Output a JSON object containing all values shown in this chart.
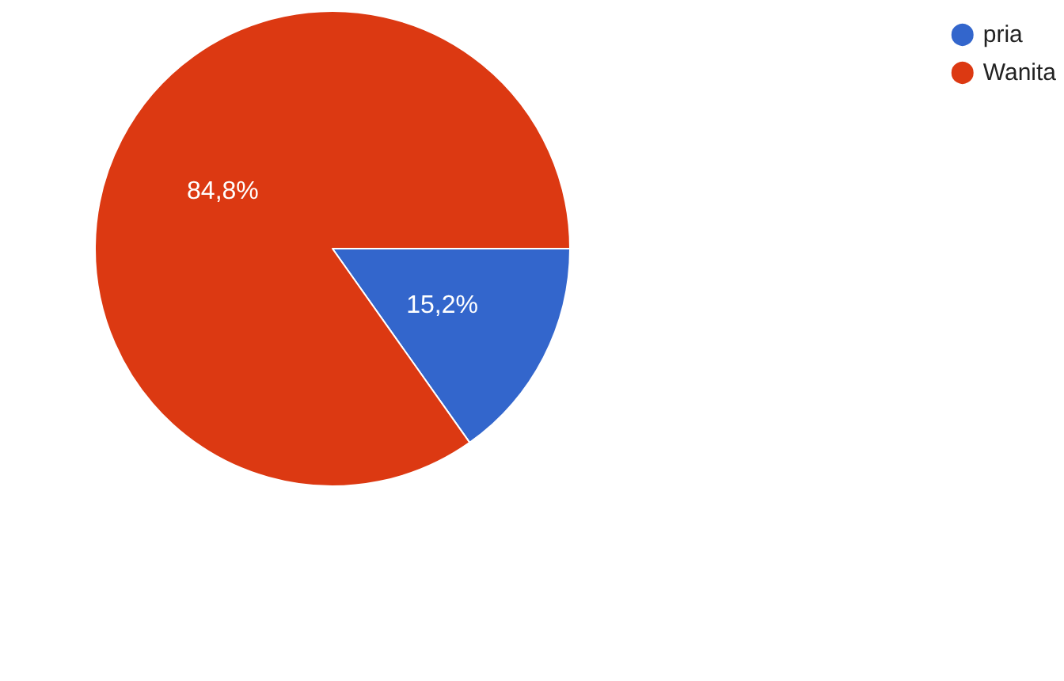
{
  "chart_data": {
    "type": "pie",
    "categories": [
      "pria",
      "Wanita"
    ],
    "values": [
      15.2,
      84.8
    ],
    "colors": [
      "#3366cc",
      "#dc3912"
    ],
    "value_labels": [
      "15,2%",
      "84,8%"
    ],
    "legend": "top right"
  }
}
